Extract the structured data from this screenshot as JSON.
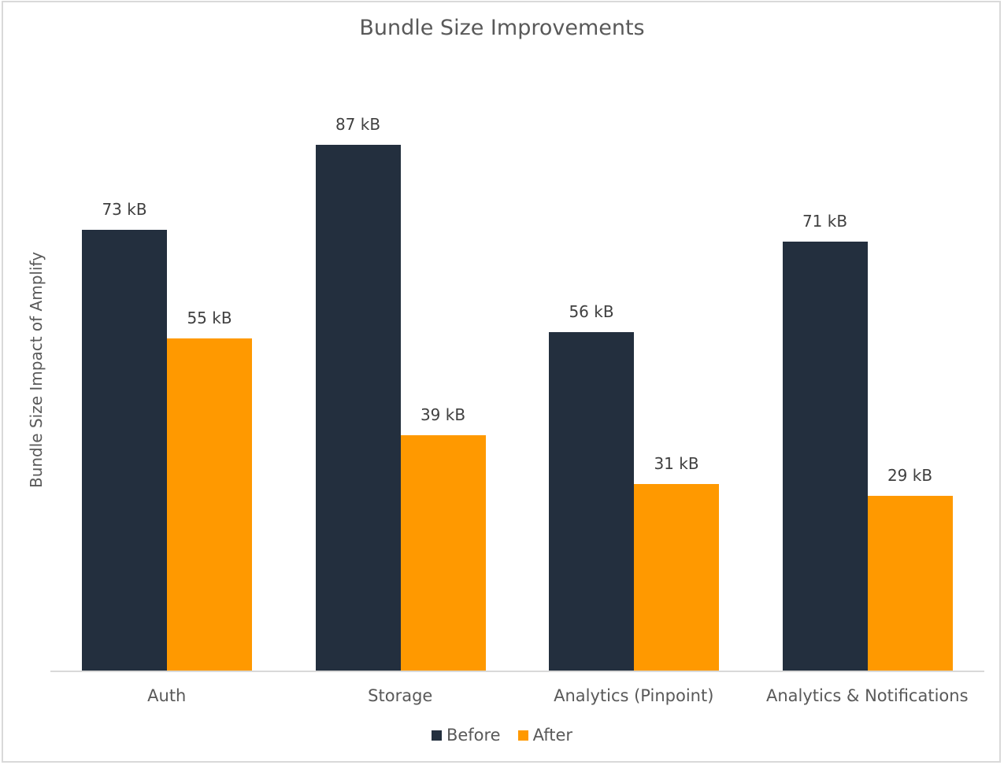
{
  "chart_data": {
    "type": "bar",
    "title": "Bundle Size Improvements",
    "xlabel": "",
    "ylabel": "Bundle Size Impact of Amplify",
    "categories": [
      "Auth",
      "Storage",
      "Analytics (Pinpoint)",
      "Analytics & Notifications"
    ],
    "series": [
      {
        "name": "Before",
        "color": "#232f3e",
        "values": [
          73,
          87,
          56,
          71
        ],
        "labels": [
          "73 kB",
          "87 kB",
          "56 kB",
          "71 kB"
        ]
      },
      {
        "name": "After",
        "color": "#ff9900",
        "values": [
          55,
          39,
          31,
          29
        ],
        "labels": [
          "55 kB",
          "39 kB",
          "31 kB",
          "29 kB"
        ]
      }
    ],
    "unit": "kB",
    "ylim": [
      0,
      97
    ],
    "grid": false,
    "y_axis_ticks_visible": false,
    "legend_position": "bottom"
  }
}
